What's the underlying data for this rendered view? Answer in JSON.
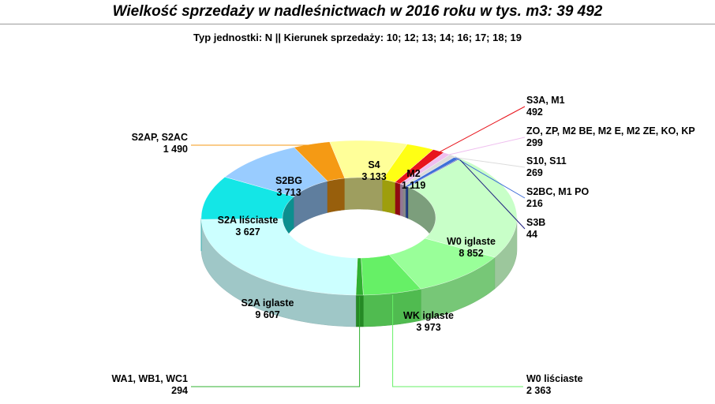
{
  "title": "Wielkość sprzedaży w nadleśnictwach w 2016 roku w tys. m3:  39 492",
  "subtitle": "Typ jednostki: N  ||  Kierunek sprzedaży: 10; 12; 13; 14; 16; 17; 18; 19",
  "chart_data": {
    "type": "pie",
    "style": "3d-doughnut",
    "total": 39492,
    "slices": [
      {
        "label": "S3A, M1",
        "value_label": "492",
        "value": 492,
        "color": "#e8141c",
        "placement": "outside-right"
      },
      {
        "label": "ZO, ZP, M2 BE, M2  E, M2 ZE, KO, KP",
        "value_label": "299",
        "value": 299,
        "color": "#efbfef",
        "placement": "outside-right"
      },
      {
        "label": "S10, S11",
        "value_label": "269",
        "value": 269,
        "color": "#dcdcdc",
        "placement": "outside-right"
      },
      {
        "label": "S2BC, M1 PO",
        "value_label": "216",
        "value": 216,
        "color": "#3f6fd8",
        "placement": "outside-right"
      },
      {
        "label": "S3B",
        "value_label": "44",
        "value": 44,
        "color": "#202080",
        "placement": "outside-right"
      },
      {
        "label": "W0 iglaste",
        "value_label": "8 852",
        "value": 8852,
        "color": "#c8ffc8",
        "placement": "inside"
      },
      {
        "label": "WK iglaste",
        "value_label": "3 973",
        "value": 3973,
        "color": "#99ff99",
        "placement": "inside"
      },
      {
        "label": "W0 liściaste",
        "value_label": "2 363",
        "value": 2363,
        "color": "#66f066",
        "placement": "outside-right"
      },
      {
        "label": "WA1, WB1, WC1",
        "value_label": "294",
        "value": 294,
        "color": "#30b030",
        "placement": "outside-left"
      },
      {
        "label": "S2A iglaste",
        "value_label": "9 607",
        "value": 9607,
        "color": "#ccffff",
        "placement": "inside"
      },
      {
        "label": "S2A liściaste",
        "value_label": "3 627",
        "value": 3627,
        "color": "#14e6e6",
        "placement": "inside"
      },
      {
        "label": "S2BG",
        "value_label": "3 713",
        "value": 3713,
        "color": "#99ccff",
        "placement": "inside"
      },
      {
        "label": "S2AP, S2AC",
        "value_label": "1 490",
        "value": 1490,
        "color": "#f59a14",
        "placement": "outside-left"
      },
      {
        "label": "S4",
        "value_label": "3 133",
        "value": 3133,
        "color": "#ffff99",
        "placement": "inside"
      },
      {
        "label": "M2",
        "value_label": "1 119",
        "value": 1119,
        "color": "#ffff14",
        "placement": "inside"
      }
    ]
  }
}
